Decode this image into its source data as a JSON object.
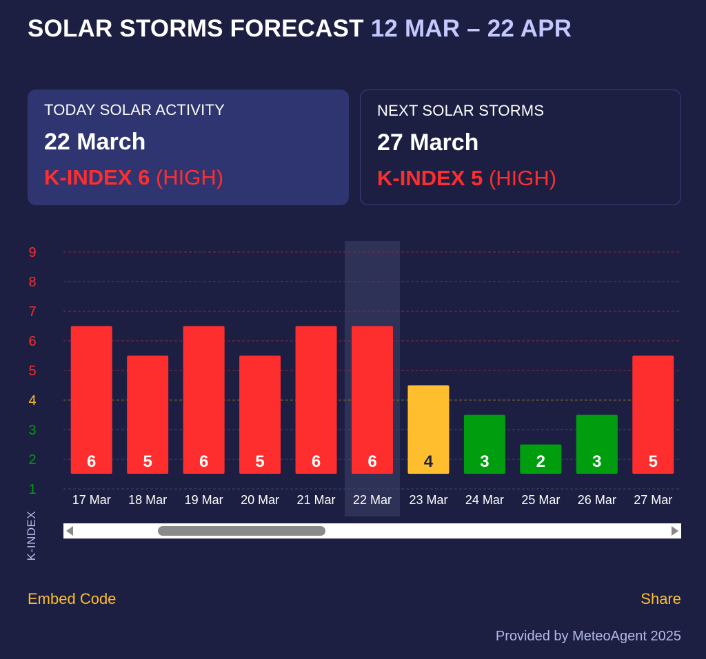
{
  "header": {
    "title": "SOLAR STORMS FORECAST",
    "range": "12 MAR – 22 APR"
  },
  "today_card": {
    "label": "TODAY SOLAR ACTIVITY",
    "date": "22 March",
    "kindex_label": "K-INDEX 6",
    "level": "(HIGH)"
  },
  "next_card": {
    "label": "NEXT SOLAR STORMS",
    "date": "27 March",
    "kindex_label": "K-INDEX 5",
    "level": "(HIGH)"
  },
  "chart_data": {
    "type": "bar",
    "categories": [
      "17 Mar",
      "18 Mar",
      "19 Mar",
      "20 Mar",
      "21 Mar",
      "22 Mar",
      "23 Mar",
      "24 Mar",
      "25 Mar",
      "26 Mar",
      "27 Mar"
    ],
    "values": [
      6,
      5,
      6,
      5,
      6,
      6,
      4,
      3,
      2,
      3,
      5
    ],
    "title": "",
    "xlabel": "",
    "ylabel": "K-INDEX",
    "ylim": [
      1,
      9
    ],
    "yticks": [
      1,
      2,
      3,
      4,
      5,
      6,
      7,
      8,
      9
    ],
    "highlighted_category": "22 Mar",
    "grid": true,
    "colors": {
      "high": "#ff2e2e",
      "moderate": "#ffbe2e",
      "low": "#009e0f",
      "highlight_band": "#2e3256"
    },
    "tick_colors": {
      "1": "#009e0f",
      "2": "#009e0f",
      "3": "#009e0f",
      "4": "#ffbe2e",
      "5": "#ff2e2e",
      "6": "#ff2e2e",
      "7": "#ff2e2e",
      "8": "#ff2e2e",
      "9": "#ff2e2e"
    }
  },
  "footer": {
    "embed_label": "Embed Code",
    "share_label": "Share",
    "provider": "Provided by MeteoAgent 2025"
  }
}
